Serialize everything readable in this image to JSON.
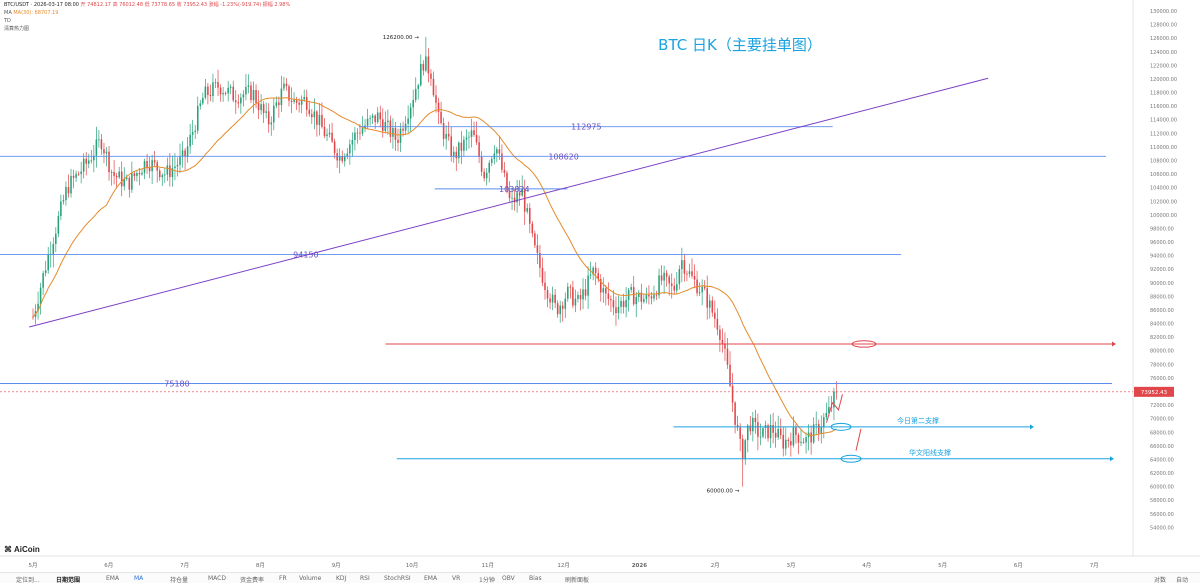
{
  "header": {
    "symbol": "BTC/USDT · 2026-03-17 08:00",
    "ohlc": "开 74812.17  高 76012.48  低 73778.65  收 73952.43  涨幅 -1.23%(-919.74)  振幅 2.98%",
    "ma_label": "MA",
    "ma_value": "MA(30): 68707.19",
    "td_label": "TD",
    "heat_label": "清算热力图"
  },
  "logo": "AiCoin",
  "toolbar": {
    "items": [
      "定位到...",
      "日期范围",
      "EMA",
      "MA",
      "持仓量",
      "MACD",
      "资金费率",
      "FR",
      "Volume",
      "KDJ",
      "RSI",
      "StochRSI",
      "EMA",
      "VR",
      "1分钟",
      "OBV",
      "Bias",
      "刷新面板"
    ],
    "right": [
      "对数",
      "自动"
    ]
  },
  "colors": {
    "up": "#27a17a",
    "down": "#e0464a",
    "ma": "#e58b2a",
    "level_line": "#5b8def",
    "trend_line": "#7a3fc6",
    "red_line": "#e0464a",
    "support_line": "#1aa3e0",
    "title": "#1aa3e0",
    "price_tag": "#e0464a"
  },
  "chart_data": {
    "type": "candlestick",
    "title": "BTC  日K（主要挂单图）",
    "x_tick_labels": [
      "5月",
      "6月",
      "7月",
      "8月",
      "9月",
      "10月",
      "11月",
      "12月",
      "2026",
      "2月",
      "3月",
      "4月",
      "5月",
      "6月",
      "7月"
    ],
    "y_axis": {
      "min": 52000,
      "max": 130000,
      "step": 2000,
      "tick_labels": [
        "54000.00",
        "56000.00",
        "58000.00",
        "60000.00",
        "62000.00",
        "64000.00",
        "66000.00",
        "68000.00",
        "70000.00",
        "72000.00",
        "74000.00",
        "76000.00",
        "78000.00",
        "80000.00",
        "82000.00",
        "84000.00",
        "86000.00",
        "88000.00",
        "90000.00",
        "92000.00",
        "94000.00",
        "96000.00",
        "98000.00",
        "100000.00",
        "102000.00",
        "104000.00",
        "106000.00",
        "108000.00",
        "110000.00",
        "112000.00",
        "114000.00",
        "116000.00",
        "118000.00",
        "120000.00",
        "122000.00",
        "124000.00",
        "126000.00",
        "128000.00",
        "130000.00"
      ]
    },
    "current_price": 73952.43,
    "current_price_label": "73952.43",
    "high_marker": {
      "label": "126200.00",
      "value": 126200
    },
    "low_marker": {
      "label": "60000.00",
      "value": 60000
    },
    "levels": [
      {
        "label": "112975",
        "value": 112975
      },
      {
        "label": "108620",
        "value": 108620
      },
      {
        "label": "103824",
        "value": 103824
      },
      {
        "label": "94150",
        "value": 94150
      },
      {
        "label": "75180",
        "value": 75180
      }
    ],
    "red_level": {
      "value": 81000
    },
    "supports": [
      {
        "label": "今日第二支撑",
        "value": 68800
      },
      {
        "label": "华文阳线支撑",
        "value": 64100
      }
    ],
    "trend_line": {
      "from": {
        "month_index": -0.05,
        "value": 83500
      },
      "to": {
        "month_index": 12.6,
        "value": 120100
      }
    },
    "ma_label": "MA(30)"
  }
}
